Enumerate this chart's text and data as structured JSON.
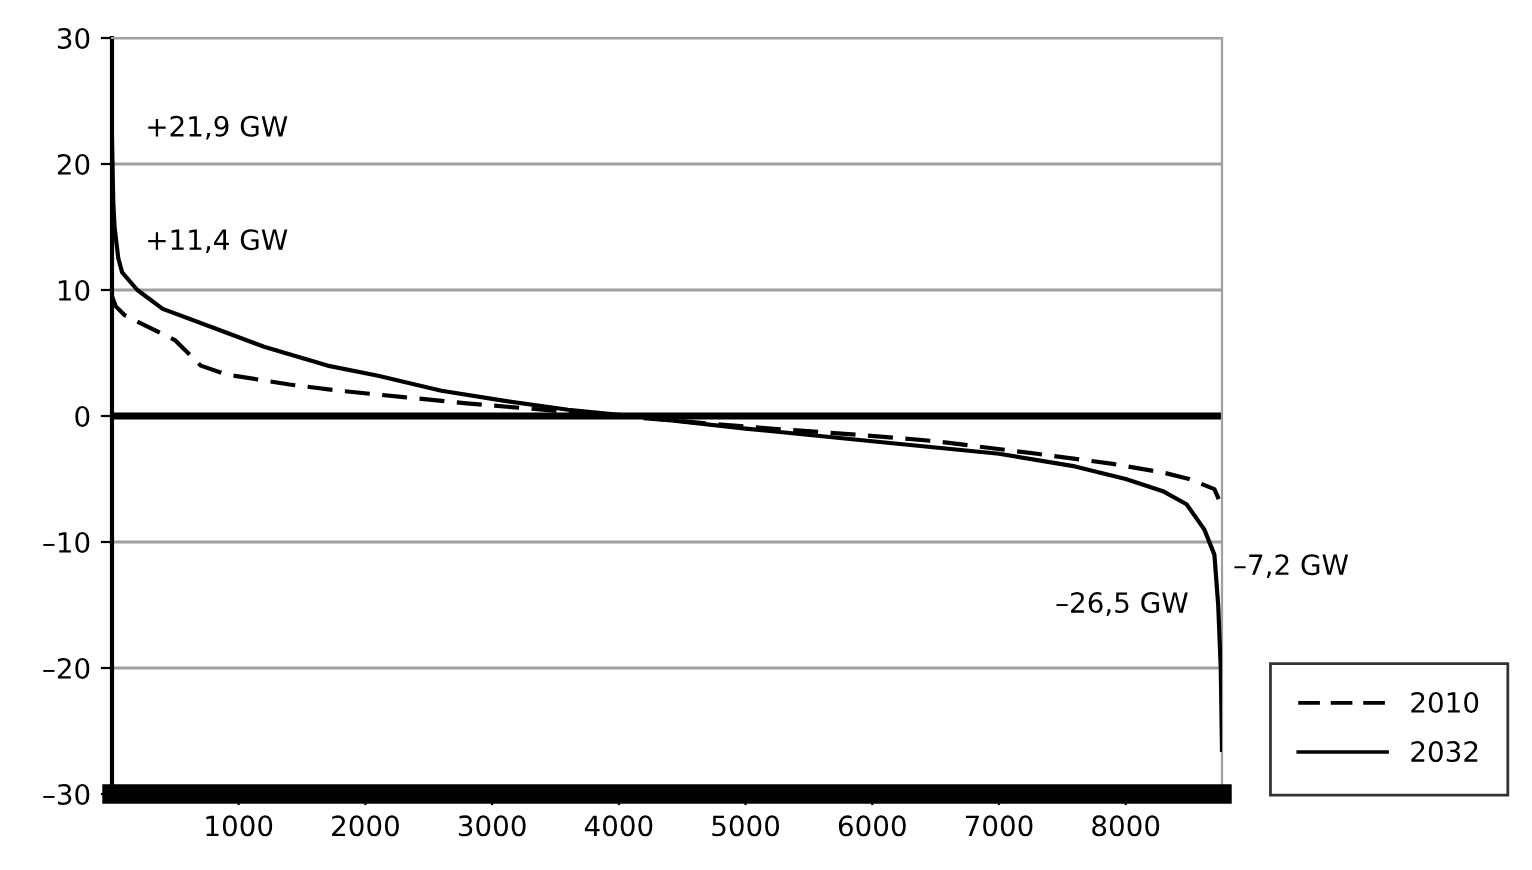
{
  "chart_data": {
    "type": "line",
    "xlim": [
      0,
      8760
    ],
    "xticks": [
      1000,
      2000,
      3000,
      4000,
      5000,
      6000,
      7000,
      8000
    ],
    "ylim": [
      -30,
      30
    ],
    "yticks": [
      {
        "value": -30,
        "label": "–30"
      },
      {
        "value": -20,
        "label": "–20"
      },
      {
        "value": -10,
        "label": "–10"
      },
      0,
      10,
      20,
      30
    ],
    "grid": "y",
    "legend": "bottom right",
    "ref_lines": [
      {
        "axis": "y",
        "value": 0,
        "color": "#000000"
      }
    ],
    "annotations": [
      "+21,9 GW",
      "+11,4 GW",
      "–7,2 GW",
      "–26,5 GW"
    ],
    "series": [
      {
        "name": "2010",
        "color": "#000000",
        "line_style": "dashed",
        "x": [
          0,
          30,
          100,
          300,
          500,
          600,
          700,
          900,
          1400,
          1800,
          2300,
          2800,
          3400,
          4000,
          4600,
          5200,
          5900,
          6500,
          7300,
          7900,
          8300,
          8500,
          8700,
          8760
        ],
        "values": [
          9.5,
          8.7,
          8,
          7,
          6,
          5,
          4,
          3.3,
          2.5,
          2,
          1.5,
          1,
          0.5,
          0,
          -0.5,
          -1,
          -1.5,
          -2,
          -3,
          -3.8,
          -4.5,
          -5,
          -5.8,
          -7.2
        ]
      },
      {
        "name": "2032",
        "color": "#000000",
        "line_style": "solid",
        "x": [
          0,
          10,
          20,
          50,
          80,
          200,
          400,
          800,
          1200,
          1700,
          2100,
          2600,
          3100,
          3600,
          4100,
          5000,
          6000,
          7000,
          7600,
          8000,
          8300,
          8480,
          8620,
          8700,
          8730,
          8750,
          8760
        ],
        "values": [
          21.9,
          17,
          15,
          12.5,
          11.4,
          10,
          8.5,
          7,
          5.5,
          4,
          3.2,
          2,
          1.2,
          0.5,
          0,
          -1,
          -2,
          -3,
          -4,
          -5,
          -6,
          -7,
          -9,
          -11,
          -15,
          -20,
          -26.5
        ]
      }
    ]
  }
}
